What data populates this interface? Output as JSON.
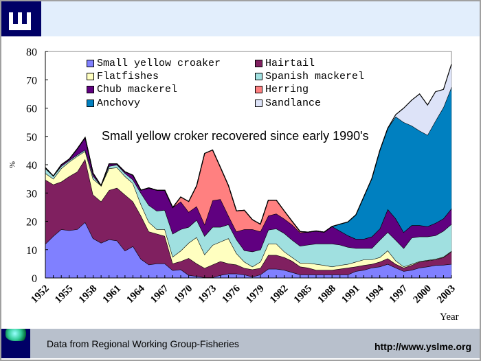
{
  "footer": {
    "source": "Data from Regional Working Group-Fisheries",
    "url": "http://www.yslme.org"
  },
  "chart_data": {
    "type": "area",
    "stacked": true,
    "title": "",
    "annotation": "Small yellow croker recovered since early 1990's",
    "xlabel": "Year",
    "ylabel": "%",
    "ylim": [
      0,
      80
    ],
    "yticks": [
      "0",
      "10",
      "20",
      "30",
      "40",
      "50",
      "60",
      "70",
      "80"
    ],
    "xticks": [
      "1952",
      "1955",
      "1958",
      "1961",
      "1964",
      "1967",
      "1970",
      "1973",
      "1976",
      "1979",
      "1982",
      "1985",
      "1988",
      "1991",
      "1994",
      "1997",
      "2000",
      "2003"
    ],
    "xlim": [
      1952,
      2003
    ],
    "grid": false,
    "legend_position": "top-left",
    "x": [
      1952,
      1953,
      1954,
      1955,
      1956,
      1957,
      1958,
      1959,
      1960,
      1961,
      1962,
      1963,
      1964,
      1965,
      1966,
      1967,
      1968,
      1969,
      1970,
      1971,
      1972,
      1973,
      1974,
      1975,
      1976,
      1977,
      1978,
      1979,
      1980,
      1981,
      1982,
      1983,
      1984,
      1985,
      1986,
      1987,
      1988,
      1989,
      1990,
      1991,
      1992,
      1993,
      1994,
      1995,
      1996,
      1997,
      1998,
      1999,
      2000,
      2001,
      2002,
      2003
    ],
    "series": [
      {
        "name": "Small yellow croaker",
        "color": "#8080ff",
        "values": [
          12,
          14.8,
          17.2,
          16.8,
          17.2,
          19.7,
          14,
          12.4,
          13.6,
          13.2,
          9.6,
          11.2,
          6.7,
          4.7,
          5.1,
          5.1,
          2.7,
          3,
          1,
          0.6,
          0.2,
          0.2,
          1,
          1.5,
          1.5,
          1.2,
          0.4,
          1.2,
          3.2,
          3.2,
          2.8,
          2,
          1.2,
          1.2,
          1.2,
          1.2,
          1.2,
          1.2,
          1.2,
          2.4,
          2.8,
          3.6,
          4,
          4.9,
          3.6,
          2.4,
          2.8,
          3.6,
          4,
          4.5,
          4.6,
          4.9
        ]
      },
      {
        "name": "Hairtail",
        "color": "#802060",
        "values": [
          22.7,
          18.2,
          16.8,
          19.1,
          20.3,
          22.3,
          15.4,
          14.6,
          17.4,
          18.6,
          19.8,
          15.8,
          15.3,
          11.7,
          10.5,
          9.7,
          2.4,
          2.9,
          6,
          4.5,
          3.3,
          4.5,
          4.9,
          3.6,
          3.2,
          2.3,
          2.6,
          2.3,
          4.9,
          4.9,
          4.5,
          4,
          2.8,
          2.4,
          1.6,
          1.6,
          1.6,
          2,
          2.4,
          1.6,
          1.7,
          1.3,
          1.7,
          2,
          1.3,
          1.2,
          1.7,
          2.1,
          2.1,
          2,
          2.7,
          4.4
        ]
      },
      {
        "name": "Flatfishes",
        "color": "#ffffc0",
        "values": [
          2.3,
          2,
          4.7,
          5.1,
          5.5,
          2.8,
          5.6,
          5.6,
          7.7,
          7.2,
          6.5,
          6.4,
          4,
          3.3,
          1.6,
          2.4,
          2.4,
          3.7,
          5.4,
          9.3,
          4.8,
          6.9,
          6.9,
          8.9,
          4,
          2.2,
          1,
          2.2,
          4,
          4,
          2,
          1.3,
          1.3,
          1.7,
          2.1,
          1.7,
          1.2,
          1.3,
          1.3,
          1.7,
          2,
          1.6,
          1.6,
          2.8,
          1.2,
          0.4,
          0.4,
          0.2,
          0.2,
          0.2,
          0.2,
          0.2
        ]
      },
      {
        "name": "Spanish mackerel",
        "color": "#a0e0e0",
        "values": [
          1.7,
          1,
          0.8,
          0.5,
          0.5,
          0.5,
          1,
          0,
          0.8,
          1,
          1.1,
          1.3,
          4,
          6,
          6.5,
          6.8,
          8.1,
          7.6,
          5.6,
          6.1,
          6.5,
          6.4,
          5.2,
          4.9,
          4.9,
          4,
          5.3,
          4.3,
          4.9,
          5.3,
          6.5,
          6.1,
          6,
          6.4,
          7.2,
          7.6,
          8.1,
          7.2,
          6,
          4.8,
          4,
          4,
          6.1,
          6.5,
          7.3,
          6.5,
          9.3,
          8.7,
          8.3,
          8.3,
          9.1,
          9.5
        ]
      },
      {
        "name": "Chub mackerel",
        "color": "#600080",
        "values": [
          0.3,
          0,
          0.5,
          0.5,
          2.1,
          4.3,
          1,
          0,
          0.8,
          0.3,
          0.5,
          1.6,
          1,
          6.1,
          7.3,
          7,
          9.3,
          9.8,
          5.3,
          4.8,
          4.1,
          9.4,
          9.8,
          3.1,
          2.8,
          7.5,
          7.9,
          6.4,
          5,
          5.3,
          5.1,
          5.4,
          4.7,
          4.5,
          4.5,
          4.1,
          6.1,
          4.9,
          4.1,
          3.3,
          3.3,
          4.1,
          4,
          8.1,
          7.6,
          5.7,
          4.4,
          4,
          3.6,
          4.4,
          4.4,
          5.5
        ]
      },
      {
        "name": "Herring",
        "color": "#ff8080",
        "values": [
          0,
          0,
          0,
          0,
          0,
          0,
          0,
          0,
          0,
          0,
          0,
          0,
          0,
          0,
          0,
          0,
          0,
          1.6,
          3.7,
          7.3,
          25.1,
          17.8,
          11.2,
          10.6,
          7.3,
          6.7,
          3.4,
          2.6,
          5.5,
          4.8,
          2.8,
          1.2,
          0.4,
          0,
          0,
          0,
          0,
          0,
          0,
          0,
          0,
          0,
          0,
          0,
          0,
          0,
          0,
          0,
          0,
          0,
          0,
          0
        ]
      },
      {
        "name": "Anchovy",
        "color": "#0080c0",
        "values": [
          0,
          0,
          0,
          0,
          0,
          0,
          0,
          0,
          0,
          0,
          0,
          0,
          0,
          0,
          0,
          0,
          0,
          0,
          0,
          0,
          0,
          0,
          0,
          0,
          0,
          0,
          0,
          0,
          0,
          0,
          0,
          0,
          0,
          0,
          0,
          0,
          0,
          2.4,
          4.8,
          8.5,
          14.9,
          20.5,
          27.6,
          28.6,
          36,
          38.8,
          35.2,
          33.4,
          32.3,
          36.1,
          39.3,
          42.9
        ]
      },
      {
        "name": "Sandlance",
        "color": "#dde3f8",
        "values": [
          0,
          0,
          0,
          0,
          0,
          0,
          0,
          0,
          0,
          0,
          0,
          0,
          0,
          0,
          0,
          0,
          0,
          0,
          0,
          0,
          0,
          0,
          0,
          0,
          0,
          0,
          0,
          0,
          0,
          0,
          0,
          0,
          0,
          0,
          0,
          0,
          0,
          0,
          0,
          0,
          0,
          0,
          0,
          0,
          0.7,
          5,
          9,
          13,
          10.6,
          10.3,
          6.3,
          8.1
        ]
      }
    ]
  }
}
